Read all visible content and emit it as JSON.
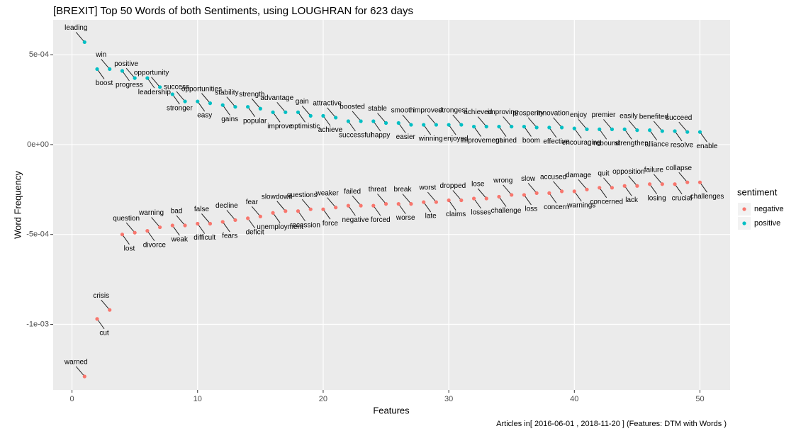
{
  "chart_data": {
    "type": "scatter",
    "title": "[BREXIT] Top 50 Words of both Sentiments, using LOUGHRAN for 623 days",
    "x_label": "Features",
    "y_label": "Word Frequency",
    "legend_title": "sentiment",
    "caption": "Articles in[ 2016-06-01 , 2018-11-20 ] (Features: DTM with Words )",
    "xlim": [
      -1.5,
      52.4
    ],
    "ylim": [
      -0.001365,
      0.000694
    ],
    "xticks": [
      0,
      10,
      20,
      30,
      40,
      50
    ],
    "yticks": [
      {
        "value": -0.001,
        "label": "-1e-03"
      },
      {
        "value": -0.0005,
        "label": "-5e-04"
      },
      {
        "value": 0,
        "label": "0e+00"
      },
      {
        "value": 0.0005,
        "label": "5e-04"
      }
    ],
    "grid": true,
    "series": [
      {
        "name": "negative",
        "color": "#F8766D",
        "x": [
          1,
          2,
          3,
          4,
          5,
          6,
          7,
          8,
          9,
          10,
          11,
          12,
          13,
          14,
          15,
          16,
          17,
          18,
          19,
          20,
          21,
          22,
          23,
          24,
          25,
          26,
          27,
          28,
          29,
          30,
          31,
          32,
          33,
          34,
          35,
          36,
          37,
          38,
          39,
          40,
          41,
          42,
          43,
          44,
          45,
          46,
          47,
          48,
          49,
          50
        ],
        "values": [
          -0.00129,
          -0.00097,
          -0.00092,
          -0.0005,
          -0.00049,
          -0.00048,
          -0.00046,
          -0.00045,
          -0.00045,
          -0.00044,
          -0.00044,
          -0.00043,
          -0.00042,
          -0.00041,
          -0.0004,
          -0.00038,
          -0.00037,
          -0.00037,
          -0.00036,
          -0.00036,
          -0.00035,
          -0.00034,
          -0.00034,
          -0.00034,
          -0.00033,
          -0.00033,
          -0.00033,
          -0.00032,
          -0.00032,
          -0.00031,
          -0.00031,
          -0.0003,
          -0.0003,
          -0.00029,
          -0.00028,
          -0.00028,
          -0.00027,
          -0.00027,
          -0.00026,
          -0.00026,
          -0.00025,
          -0.00024,
          -0.00024,
          -0.00023,
          -0.00023,
          -0.00022,
          -0.00022,
          -0.00022,
          -0.00021,
          -0.00021
        ],
        "labels": [
          "warned",
          "cut",
          "crisis",
          "lost",
          "question",
          "divorce",
          "warning",
          "weak",
          "bad",
          "difficult",
          "false",
          "fears",
          "decline",
          "deficit",
          "fear",
          "unemployment",
          "slowdown",
          "recession",
          "questions",
          "force",
          "weaker",
          "negative",
          "failed",
          "forced",
          "threat",
          "worse",
          "break",
          "late",
          "worst",
          "claims",
          "dropped",
          "losses",
          "lose",
          "challenge",
          "wrong",
          "loss",
          "slow",
          "concern",
          "accused",
          "warnings",
          "damage",
          "concerned",
          "quit",
          "lack",
          "opposition",
          "losing",
          "failure",
          "crucial",
          "collapse",
          "challenges"
        ]
      },
      {
        "name": "positive",
        "color": "#00BFC4",
        "x": [
          1,
          2,
          3,
          4,
          5,
          6,
          7,
          8,
          9,
          10,
          11,
          12,
          13,
          14,
          15,
          16,
          17,
          18,
          19,
          20,
          21,
          22,
          23,
          24,
          25,
          26,
          27,
          28,
          29,
          30,
          31,
          32,
          33,
          34,
          35,
          36,
          37,
          38,
          39,
          40,
          41,
          42,
          43,
          44,
          45,
          46,
          47,
          48,
          49,
          50
        ],
        "values": [
          0.00057,
          0.00042,
          0.00042,
          0.00041,
          0.00037,
          0.00037,
          0.00032,
          0.00028,
          0.00024,
          0.00024,
          0.00023,
          0.00022,
          0.00021,
          0.00021,
          0.0002,
          0.00018,
          0.00018,
          0.00018,
          0.00016,
          0.00016,
          0.00015,
          0.00013,
          0.00013,
          0.00013,
          0.00012,
          0.00012,
          0.00011,
          0.00011,
          0.00011,
          0.00011,
          0.00011,
          0.0001,
          0.0001,
          0.0001,
          0.0001,
          0.0001,
          9.5e-05,
          9.5e-05,
          9.5e-05,
          9e-05,
          8.5e-05,
          8.5e-05,
          8.5e-05,
          8.5e-05,
          8e-05,
          8e-05,
          7.5e-05,
          7.5e-05,
          7e-05,
          7e-05
        ],
        "labels": [
          "leading",
          "boost",
          "win",
          "progress",
          "positive",
          "leadership",
          "opportunity",
          "stronger",
          "success",
          "easy",
          "opportunities",
          "gains",
          "stability",
          "popular",
          "strength",
          "improve",
          "advantage",
          "optimistic",
          "gain",
          "achieve",
          "attractive",
          "successful",
          "boosted",
          "happy",
          "stable",
          "easier",
          "smooth",
          "winning",
          "improved",
          "enjoyed",
          "strongest",
          "improvement",
          "achieved",
          "gained",
          "improving",
          "boom",
          "prosperity",
          "effective",
          "innovation",
          "encouraging",
          "enjoy",
          "rebound",
          "premier",
          "strengthen",
          "easily",
          "alliance",
          "benefited",
          "resolve",
          "succeed",
          "enable"
        ]
      }
    ]
  }
}
